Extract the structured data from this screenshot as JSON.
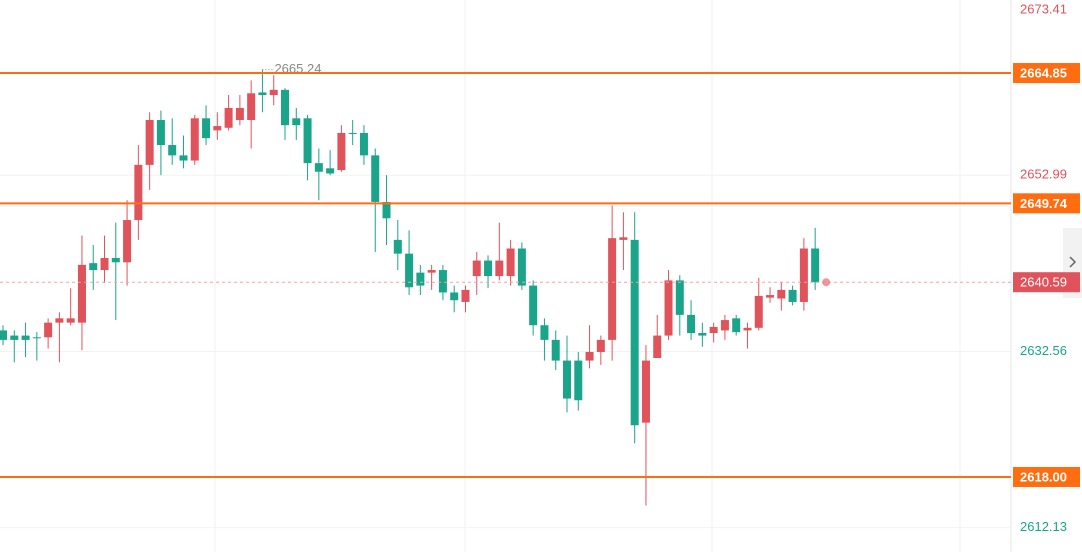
{
  "chart_data": {
    "type": "candlestick",
    "open": [
      2635.0,
      2634.4,
      2634.4,
      2634.2,
      2634.2,
      2635.9,
      2635.9,
      2635.9,
      2642.8,
      2642.0,
      2643.4,
      2642.9,
      2647.8,
      2654.2,
      2659.4,
      2656.5,
      2655.3,
      2654.7,
      2659.6,
      2658.2,
      2658.5,
      2659.4,
      2659.4,
      2662.6,
      2662.3,
      2662.9,
      2659.6,
      2659.6,
      2654.4,
      2653.8,
      2653.6,
      2657.9,
      2657.9,
      2655.3,
      2649.9,
      2645.5,
      2643.9,
      2641.7,
      2641.7,
      2642.0,
      2639.4,
      2638.3,
      2641.3,
      2643.1,
      2641.3,
      2641.3,
      2644.5,
      2640.2,
      2635.6,
      2633.9,
      2631.5,
      2631.5,
      2631.5,
      2632.5,
      2633.9,
      2645.5,
      2645.5,
      2624.3,
      2631.8,
      2634.4,
      2640.8,
      2636.8,
      2634.7,
      2634.7,
      2635.0,
      2636.4,
      2635.0,
      2635.3,
      2638.8,
      2638.7,
      2639.7,
      2638.3,
      2644.5
    ],
    "high": [
      2635.6,
      2635.0,
      2635.9,
      2634.8,
      2636.4,
      2637.1,
      2639.9,
      2646.0,
      2644.9,
      2646.0,
      2647.5,
      2650.1,
      2656.5,
      2660.3,
      2660.5,
      2659.6,
      2657.6,
      2660.0,
      2661.1,
      2660.3,
      2662.3,
      2662.3,
      2664.0,
      2665.24,
      2664.6,
      2663.1,
      2660.8,
      2660.0,
      2656.1,
      2655.9,
      2658.8,
      2659.4,
      2658.8,
      2656.1,
      2653.0,
      2647.8,
      2646.6,
      2642.6,
      2642.6,
      2642.6,
      2640.2,
      2640.2,
      2644.1,
      2643.7,
      2647.5,
      2645.5,
      2645.2,
      2640.8,
      2636.4,
      2635.0,
      2634.4,
      2632.5,
      2635.6,
      2634.4,
      2649.5,
      2648.7,
      2648.7,
      2633.3,
      2636.8,
      2642.0,
      2641.4,
      2638.5,
      2635.9,
      2635.9,
      2636.8,
      2636.8,
      2635.9,
      2641.1,
      2640.0,
      2640.6,
      2640.2,
      2645.7,
      2646.9
    ],
    "low": [
      2633.3,
      2631.3,
      2631.9,
      2631.5,
      2632.9,
      2631.3,
      2635.6,
      2632.7,
      2639.7,
      2640.5,
      2636.2,
      2640.2,
      2645.5,
      2651.3,
      2653.0,
      2654.2,
      2653.8,
      2654.2,
      2656.5,
      2657.1,
      2658.2,
      2658.8,
      2656.1,
      2660.3,
      2661.1,
      2657.1,
      2657.1,
      2652.4,
      2650.1,
      2653.0,
      2653.4,
      2656.5,
      2654.2,
      2644.1,
      2644.9,
      2642.0,
      2639.1,
      2639.1,
      2639.7,
      2638.5,
      2637.1,
      2637.1,
      2639.1,
      2639.9,
      2640.8,
      2640.2,
      2639.7,
      2634.4,
      2631.5,
      2630.4,
      2625.5,
      2625.7,
      2630.6,
      2631.0,
      2631.5,
      2642.0,
      2621.9,
      2614.7,
      2631.8,
      2633.9,
      2634.4,
      2633.9,
      2633.1,
      2633.6,
      2633.9,
      2634.4,
      2632.9,
      2635.0,
      2638.2,
      2637.3,
      2637.9,
      2637.3,
      2639.7
    ],
    "close": [
      2633.9,
      2633.9,
      2633.9,
      2634.1,
      2635.9,
      2636.4,
      2636.4,
      2642.6,
      2642.0,
      2643.4,
      2642.9,
      2647.8,
      2654.2,
      2659.4,
      2656.5,
      2655.3,
      2654.7,
      2659.6,
      2657.3,
      2658.7,
      2660.8,
      2660.8,
      2662.5,
      2662.3,
      2662.9,
      2658.8,
      2658.8,
      2654.4,
      2653.4,
      2653.2,
      2657.9,
      2657.8,
      2655.3,
      2649.9,
      2648.0,
      2643.9,
      2640.0,
      2640.2,
      2642.0,
      2639.4,
      2638.5,
      2639.7,
      2643.1,
      2641.3,
      2643.1,
      2644.5,
      2640.2,
      2635.6,
      2633.9,
      2631.5,
      2627.1,
      2626.9,
      2632.5,
      2633.9,
      2645.7,
      2645.8,
      2624.0,
      2631.5,
      2634.4,
      2640.8,
      2636.8,
      2634.7,
      2634.4,
      2635.4,
      2636.2,
      2634.8,
      2635.3,
      2639.0,
      2639.1,
      2639.7,
      2638.3,
      2644.5,
      2640.59
    ],
    "up_color": "#e0535b",
    "down_color": "#1aa58b",
    "ylim": [
      2609.3,
      2673.32
    ],
    "yticks": [
      2673.41,
      2652.99,
      2632.56,
      2612.13
    ],
    "grid": true,
    "hlines": [
      2664.85,
      2649.74,
      {
        "value": 2618,
        "label": "2618.00"
      }
    ],
    "hline_color": "#ff6d10"
  }
}
